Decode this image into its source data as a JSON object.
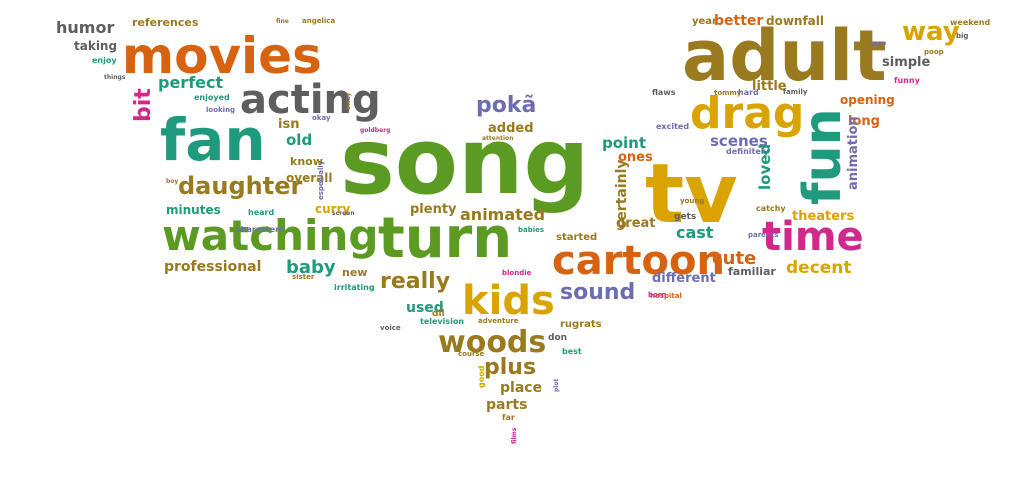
{
  "palette": {
    "background": "#ffffff",
    "green": "#5b9b22",
    "orange": "#d7620f",
    "teal": "#1f9a7c",
    "gold": "#d9a400",
    "olive": "#9a7a1f",
    "purple": "#6d6db0",
    "pink": "#d1288c",
    "gray": "#5e5e5e"
  },
  "words": [
    {
      "text": "song",
      "color": "green"
    },
    {
      "text": "tv",
      "color": "gold"
    },
    {
      "text": "adult",
      "color": "olive"
    },
    {
      "text": "movies",
      "color": "orange"
    },
    {
      "text": "fan",
      "color": "teal"
    },
    {
      "text": "turn",
      "color": "green"
    },
    {
      "text": "watching",
      "color": "green"
    },
    {
      "text": "fun",
      "color": "teal"
    },
    {
      "text": "drag",
      "color": "gold"
    },
    {
      "text": "kids",
      "color": "gold"
    },
    {
      "text": "cartoon",
      "color": "orange"
    },
    {
      "text": "time",
      "color": "pink"
    },
    {
      "text": "acting",
      "color": "gray"
    },
    {
      "text": "woods",
      "color": "olive"
    },
    {
      "text": "daughter",
      "color": "olive"
    },
    {
      "text": "pokã",
      "color": "purple"
    },
    {
      "text": "sound",
      "color": "purple"
    },
    {
      "text": "plus",
      "color": "olive"
    },
    {
      "text": "really",
      "color": "olive"
    },
    {
      "text": "way",
      "color": "gold"
    },
    {
      "text": "humor",
      "color": "gray"
    },
    {
      "text": "perfect",
      "color": "teal"
    },
    {
      "text": "old",
      "color": "teal"
    },
    {
      "text": "baby",
      "color": "teal"
    },
    {
      "text": "professional",
      "color": "olive"
    },
    {
      "text": "animated",
      "color": "olive"
    },
    {
      "text": "cute",
      "color": "orange"
    },
    {
      "text": "cast",
      "color": "teal"
    },
    {
      "text": "decent",
      "color": "gold"
    },
    {
      "text": "bit",
      "color": "pink"
    },
    {
      "text": "taking",
      "color": "gray"
    },
    {
      "text": "references",
      "color": "olive"
    },
    {
      "text": "enjoy",
      "color": "teal"
    },
    {
      "text": "enjoyed",
      "color": "teal"
    },
    {
      "text": "looking",
      "color": "purple"
    },
    {
      "text": "things",
      "color": "gray"
    },
    {
      "text": "fine",
      "color": "olive"
    },
    {
      "text": "angelica",
      "color": "olive"
    },
    {
      "text": "away",
      "color": "olive"
    },
    {
      "text": "goldberg",
      "color": "pink"
    },
    {
      "text": "okay",
      "color": "purple"
    },
    {
      "text": "isn",
      "color": "olive"
    },
    {
      "text": "know",
      "color": "olive"
    },
    {
      "text": "overall",
      "color": "olive"
    },
    {
      "text": "especially",
      "color": "purple"
    },
    {
      "text": "boy",
      "color": "olive"
    },
    {
      "text": "minutes",
      "color": "teal"
    },
    {
      "text": "heard",
      "color": "teal"
    },
    {
      "text": "characters",
      "color": "purple"
    },
    {
      "text": "curry",
      "color": "gold"
    },
    {
      "text": "screen",
      "color": "gray"
    },
    {
      "text": "plenty",
      "color": "olive"
    },
    {
      "text": "added",
      "color": "olive"
    },
    {
      "text": "attention",
      "color": "olive"
    },
    {
      "text": "babies",
      "color": "teal"
    },
    {
      "text": "started",
      "color": "olive"
    },
    {
      "text": "new",
      "color": "olive"
    },
    {
      "text": "irritating",
      "color": "teal"
    },
    {
      "text": "sister",
      "color": "olive"
    },
    {
      "text": "used",
      "color": "teal"
    },
    {
      "text": "dil",
      "color": "olive"
    },
    {
      "text": "voice",
      "color": "gray"
    },
    {
      "text": "television",
      "color": "teal"
    },
    {
      "text": "adventure",
      "color": "olive"
    },
    {
      "text": "blondie",
      "color": "pink"
    },
    {
      "text": "rugrats",
      "color": "olive"
    },
    {
      "text": "don",
      "color": "gray"
    },
    {
      "text": "best",
      "color": "teal"
    },
    {
      "text": "course",
      "color": "olive"
    },
    {
      "text": "good",
      "color": "gold"
    },
    {
      "text": "place",
      "color": "olive"
    },
    {
      "text": "plot",
      "color": "purple"
    },
    {
      "text": "parts",
      "color": "olive"
    },
    {
      "text": "far",
      "color": "olive"
    },
    {
      "text": "films",
      "color": "pink"
    },
    {
      "text": "point",
      "color": "teal"
    },
    {
      "text": "ones",
      "color": "orange"
    },
    {
      "text": "certainly",
      "color": "olive"
    },
    {
      "text": "great",
      "color": "olive"
    },
    {
      "text": "excited",
      "color": "purple"
    },
    {
      "text": "scenes",
      "color": "purple"
    },
    {
      "text": "year",
      "color": "olive"
    },
    {
      "text": "better",
      "color": "orange"
    },
    {
      "text": "downfall",
      "color": "olive"
    },
    {
      "text": "weekend",
      "color": "olive"
    },
    {
      "text": "big",
      "color": "gray"
    },
    {
      "text": "soon",
      "color": "purple"
    },
    {
      "text": "poop",
      "color": "olive"
    },
    {
      "text": "simple",
      "color": "gray"
    },
    {
      "text": "funny",
      "color": "pink"
    },
    {
      "text": "little",
      "color": "olive"
    },
    {
      "text": "family",
      "color": "gray"
    },
    {
      "text": "hard",
      "color": "purple"
    },
    {
      "text": "tommy",
      "color": "olive"
    },
    {
      "text": "flaws",
      "color": "gray"
    },
    {
      "text": "opening",
      "color": "orange"
    },
    {
      "text": "long",
      "color": "orange"
    },
    {
      "text": "animation",
      "color": "purple"
    },
    {
      "text": "definitely",
      "color": "purple"
    },
    {
      "text": "loved",
      "color": "teal"
    },
    {
      "text": "catchy",
      "color": "olive"
    },
    {
      "text": "theaters",
      "color": "gold"
    },
    {
      "text": "young",
      "color": "olive"
    },
    {
      "text": "gets",
      "color": "gray"
    },
    {
      "text": "parents",
      "color": "purple"
    },
    {
      "text": "different",
      "color": "purple"
    },
    {
      "text": "familiar",
      "color": "gray"
    },
    {
      "text": "hospital",
      "color": "orange"
    },
    {
      "text": "born",
      "color": "pink"
    }
  ]
}
